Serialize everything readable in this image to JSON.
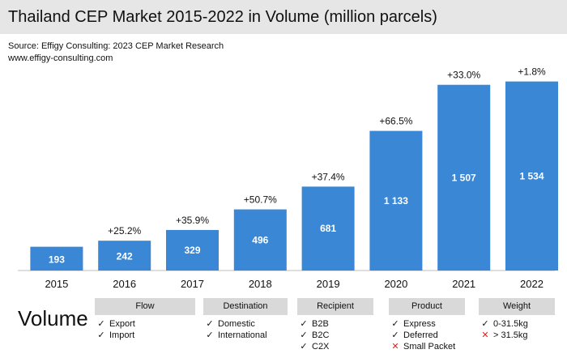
{
  "title": "Thailand CEP Market 2015-2022 in Volume (million parcels)",
  "source": {
    "line1": "Source: Effigy Consulting: 2023 CEP Market Research",
    "line2": "www.effigy-consulting.com"
  },
  "colors": {
    "bar": "#3a87d6",
    "axis": "#bfbfbf",
    "header_bg": "#e6e6e6",
    "category_bg": "#d9d9d9",
    "cross": "#e02020"
  },
  "chart_data": {
    "type": "bar",
    "categories": [
      "2015",
      "2016",
      "2017",
      "2018",
      "2019",
      "2020",
      "2021",
      "2022"
    ],
    "values": [
      193,
      242,
      329,
      496,
      681,
      1133,
      1507,
      1534
    ],
    "value_labels": [
      "193",
      "242",
      "329",
      "496",
      "681",
      "1 133",
      "1 507",
      "1 534"
    ],
    "growth_labels": [
      "",
      "+25.2%",
      "+35.9%",
      "+50.7%",
      "+37.4%",
      "+66.5%",
      "+33.0%",
      "+1.8%"
    ],
    "title": "Thailand CEP Market 2015-2022 in Volume (million parcels)",
    "ylim": [
      0,
      1630
    ],
    "grid": false,
    "legend": "none"
  },
  "legend": {
    "title": "Volume",
    "categories": [
      {
        "label": "Flow",
        "items": [
          {
            "text": "Export",
            "mark": "check"
          },
          {
            "text": "Import",
            "mark": "check"
          }
        ]
      },
      {
        "label": "Destination",
        "items": [
          {
            "text": "Domestic",
            "mark": "check"
          },
          {
            "text": "International",
            "mark": "check"
          }
        ]
      },
      {
        "label": "Recipient",
        "items": [
          {
            "text": "B2B",
            "mark": "check"
          },
          {
            "text": "B2C",
            "mark": "check"
          },
          {
            "text": "C2X",
            "mark": "check"
          }
        ]
      },
      {
        "label": "Product",
        "items": [
          {
            "text": "Express",
            "mark": "check"
          },
          {
            "text": "Deferred",
            "mark": "check"
          },
          {
            "text": "Small Packet",
            "mark": "cross"
          }
        ]
      },
      {
        "label": "Weight",
        "items": [
          {
            "text": "0-31.5kg",
            "mark": "check"
          },
          {
            "text": "> 31.5kg",
            "mark": "cross"
          }
        ]
      }
    ]
  }
}
